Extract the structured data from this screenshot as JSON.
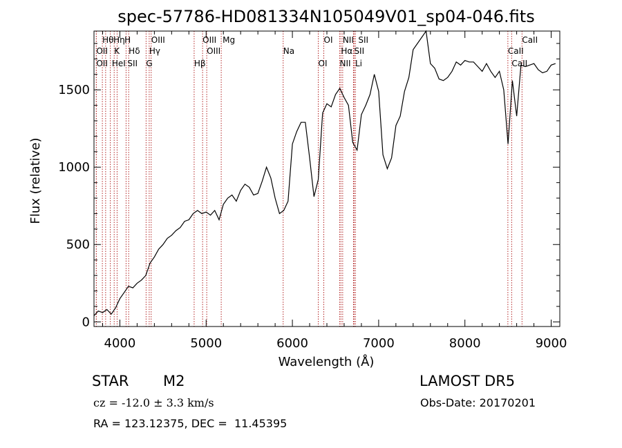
{
  "chart_data": {
    "type": "line",
    "title": "spec-57786-HD081334N105049V01_sp04-046.fits",
    "xlabel": "Wavelength (Å)",
    "ylabel": "Flux (relative)",
    "xlim": [
      3700,
      9100
    ],
    "ylim": [
      -30,
      1880
    ],
    "xticks": [
      4000,
      5000,
      6000,
      7000,
      8000,
      9000
    ],
    "yticks": [
      0,
      500,
      1000,
      1500
    ],
    "grid": false,
    "series": [
      {
        "x": [
          3700,
          3750,
          3800,
          3850,
          3900,
          3950,
          4000,
          4050,
          4100,
          4150,
          4200,
          4250,
          4300,
          4350,
          4400,
          4450,
          4500,
          4550,
          4600,
          4650,
          4700,
          4750,
          4800,
          4850,
          4900,
          4950,
          5000,
          5050,
          5100,
          5150,
          5200,
          5250,
          5300,
          5350,
          5400,
          5450,
          5500,
          5550,
          5600,
          5650,
          5700,
          5750,
          5800,
          5850,
          5900,
          5950,
          6000,
          6050,
          6100,
          6150,
          6200,
          6250,
          6300,
          6350,
          6400,
          6450,
          6500,
          6550,
          6600,
          6650,
          6700,
          6750,
          6800,
          6850,
          6900,
          6950,
          7000,
          7050,
          7100,
          7150,
          7200,
          7250,
          7300,
          7350,
          7400,
          7450,
          7500,
          7550,
          7600,
          7650,
          7700,
          7750,
          7800,
          7850,
          7900,
          7950,
          8000,
          8050,
          8100,
          8150,
          8200,
          8250,
          8300,
          8350,
          8400,
          8450,
          8500,
          8550,
          8600,
          8650,
          8700,
          8750,
          8800,
          8850,
          8900,
          8950,
          9000,
          9050
        ],
        "values": [
          40,
          70,
          60,
          80,
          50,
          90,
          150,
          190,
          230,
          220,
          250,
          270,
          300,
          380,
          420,
          470,
          500,
          540,
          560,
          590,
          610,
          650,
          660,
          700,
          720,
          700,
          710,
          690,
          720,
          660,
          760,
          800,
          820,
          780,
          850,
          890,
          870,
          820,
          830,
          910,
          1000,
          930,
          800,
          700,
          720,
          780,
          1150,
          1230,
          1290,
          1290,
          1060,
          810,
          920,
          1350,
          1410,
          1390,
          1470,
          1510,
          1450,
          1400,
          1160,
          1110,
          1340,
          1400,
          1470,
          1600,
          1490,
          1080,
          990,
          1060,
          1270,
          1330,
          1490,
          1580,
          1760,
          1800,
          1840,
          1880,
          1670,
          1640,
          1570,
          1560,
          1580,
          1620,
          1680,
          1660,
          1690,
          1680,
          1680,
          1650,
          1620,
          1670,
          1620,
          1580,
          1620,
          1500,
          1150,
          1560,
          1330,
          1660,
          1650,
          1660,
          1670,
          1630,
          1610,
          1620,
          1660,
          1670
        ]
      }
    ],
    "lines": [
      {
        "name": "Hθ",
        "x": 3797
      },
      {
        "name": "OII",
        "x": 3727
      },
      {
        "name": "OII",
        "x": 3727
      },
      {
        "name": "Hη",
        "x": 3835
      },
      {
        "name": "K",
        "x": 3934
      },
      {
        "name": "HeI",
        "x": 3889
      },
      {
        "name": "H",
        "x": 3968
      },
      {
        "name": "Hδ",
        "x": 4102
      },
      {
        "name": "SII",
        "x": 4072
      },
      {
        "name": "OIII",
        "x": 4363
      },
      {
        "name": "Hγ",
        "x": 4340
      },
      {
        "name": "G",
        "x": 4304
      },
      {
        "name": "OIII",
        "x": 4959
      },
      {
        "name": "OIII",
        "x": 5007
      },
      {
        "name": "Hβ",
        "x": 4861
      },
      {
        "name": "Mg",
        "x": 5175
      },
      {
        "name": "Na",
        "x": 5893
      },
      {
        "name": "OI",
        "x": 6300
      },
      {
        "name": "OI",
        "x": 6364
      },
      {
        "name": "Hα",
        "x": 6563
      },
      {
        "name": "NII",
        "x": 6548
      },
      {
        "name": "NII",
        "x": 6583
      },
      {
        "name": "SII",
        "x": 6716
      },
      {
        "name": "Li",
        "x": 6708
      },
      {
        "name": "SII",
        "x": 6731
      },
      {
        "name": "CaII",
        "x": 8498
      },
      {
        "name": "CaII",
        "x": 8542
      },
      {
        "name": "CaII",
        "x": 8662
      }
    ]
  },
  "info": {
    "object_class": "STAR",
    "subclass": "M2",
    "survey": "LAMOST DR5",
    "cz": "cz = -12.0 ± 3.3 km/s",
    "obs_date": "Obs-Date: 20170201",
    "coords": "RA = 123.12375, DEC =  11.45395"
  }
}
